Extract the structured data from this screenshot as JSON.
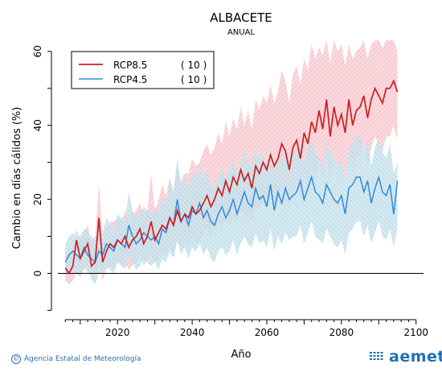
{
  "chart_data": {
    "type": "line",
    "title": "ALBACETE",
    "subtitle": "ANUAL",
    "xlabel": "Año",
    "ylabel": "Cambio en días cálidos (%)",
    "xlim": [
      2004,
      2102
    ],
    "ylim": [
      -11,
      63
    ],
    "xticks": [
      2020,
      2040,
      2060,
      2080,
      2100
    ],
    "yticks": [
      0,
      20,
      40,
      60
    ],
    "grid": false,
    "legend_placement": "top-left",
    "x_start": 2006,
    "series": [
      {
        "name": "RCP8.5",
        "count": "( 10 )",
        "color": "#cc1f1f",
        "band_color": "#f6b8c1",
        "values": [
          1.5,
          0,
          2,
          9,
          4,
          6,
          8,
          2,
          3,
          15,
          3,
          6,
          8,
          7,
          9,
          8,
          10,
          7,
          9,
          10,
          12,
          8,
          10,
          14,
          9,
          11,
          13,
          12,
          15,
          13,
          17,
          14,
          16,
          15,
          18,
          16,
          17,
          19,
          21,
          18,
          20,
          23,
          21,
          25,
          22,
          26,
          24,
          28,
          25,
          27,
          23,
          29,
          27,
          30,
          28,
          32,
          29,
          31,
          35,
          33,
          28,
          34,
          36,
          31,
          38,
          35,
          41,
          38,
          44,
          39,
          47,
          37,
          45,
          40,
          43,
          38,
          47,
          40,
          44,
          45,
          48,
          42,
          47,
          50,
          48,
          46,
          50,
          50,
          52,
          49
        ],
        "upper": [
          6,
          5,
          7,
          12,
          9,
          11,
          13,
          8,
          10,
          24,
          10,
          12,
          14,
          14,
          15,
          14,
          17,
          14,
          16,
          17,
          19,
          16,
          17,
          27,
          17,
          20,
          24,
          21,
          26,
          22,
          29,
          25,
          27,
          27,
          31,
          29,
          30,
          33,
          35,
          32,
          34,
          38,
          35,
          41,
          37,
          42,
          39,
          45,
          40,
          44,
          39,
          47,
          44,
          48,
          46,
          51,
          46,
          49,
          55,
          52,
          46,
          54,
          56,
          51,
          58,
          55,
          62,
          58,
          61,
          59,
          63,
          57,
          63,
          60,
          62,
          56,
          62,
          58,
          60,
          61,
          63,
          58,
          62,
          63,
          63,
          61,
          63,
          63,
          63,
          60
        ],
        "lower": [
          -2,
          -3,
          -2,
          0,
          -1,
          1,
          2,
          -2,
          -2,
          3,
          -2,
          1,
          2,
          1,
          3,
          2,
          3,
          1,
          2,
          3,
          5,
          2,
          4,
          5,
          3,
          4,
          6,
          5,
          7,
          5,
          9,
          6,
          8,
          7,
          10,
          8,
          9,
          11,
          12,
          10,
          12,
          14,
          12,
          15,
          13,
          16,
          14,
          17,
          15,
          16,
          14,
          18,
          17,
          19,
          18,
          21,
          19,
          20,
          23,
          21,
          17,
          22,
          24,
          20,
          26,
          23,
          28,
          25,
          30,
          26,
          32,
          24,
          31,
          27,
          30,
          25,
          33,
          27,
          31,
          32,
          34,
          29,
          34,
          37,
          35,
          33,
          37,
          37,
          40,
          36
        ]
      },
      {
        "name": "RCP4.5",
        "count": "( 10 )",
        "color": "#3388dd",
        "band_color": "#b8dbe8",
        "values": [
          3,
          5,
          6,
          5,
          4,
          7,
          5,
          4,
          3,
          6,
          5,
          8,
          7,
          6,
          9,
          8,
          7,
          13,
          10,
          8,
          9,
          11,
          10,
          9,
          10,
          8,
          12,
          11,
          15,
          13,
          20,
          14,
          16,
          13,
          17,
          16,
          19,
          15,
          17,
          14,
          13,
          16,
          18,
          15,
          17,
          20,
          16,
          19,
          22,
          19,
          18,
          23,
          20,
          21,
          18,
          24,
          17,
          22,
          19,
          23,
          20,
          21,
          22,
          25,
          20,
          23,
          26,
          22,
          21,
          19,
          24,
          22,
          20,
          19,
          21,
          16,
          23,
          24,
          26,
          26,
          22,
          25,
          19,
          23,
          26,
          22,
          21,
          24,
          16,
          25
        ],
        "upper": [
          8,
          10,
          11,
          10,
          10,
          12,
          11,
          10,
          9,
          12,
          11,
          15,
          13,
          12,
          16,
          15,
          14,
          22,
          17,
          15,
          16,
          18,
          17,
          16,
          18,
          16,
          21,
          19,
          25,
          22,
          31,
          24,
          26,
          23,
          27,
          26,
          30,
          25,
          28,
          24,
          23,
          26,
          29,
          25,
          28,
          31,
          26,
          30,
          33,
          30,
          29,
          34,
          31,
          32,
          28,
          35,
          27,
          33,
          30,
          34,
          31,
          32,
          33,
          36,
          30,
          34,
          37,
          33,
          31,
          29,
          35,
          33,
          31,
          29,
          31,
          25,
          34,
          35,
          37,
          37,
          33,
          36,
          29,
          34,
          37,
          33,
          31,
          35,
          27,
          30
        ],
        "lower": [
          -1,
          1,
          1,
          0,
          -1,
          2,
          0,
          -1,
          -3,
          0,
          0,
          2,
          1,
          0,
          3,
          2,
          1,
          5,
          3,
          1,
          2,
          4,
          3,
          2,
          3,
          1,
          4,
          3,
          6,
          4,
          9,
          5,
          7,
          4,
          7,
          6,
          8,
          5,
          7,
          4,
          3,
          6,
          7,
          5,
          6,
          9,
          5,
          8,
          10,
          8,
          7,
          11,
          8,
          9,
          7,
          12,
          6,
          10,
          8,
          11,
          9,
          10,
          10,
          13,
          8,
          11,
          14,
          10,
          9,
          8,
          12,
          10,
          8,
          7,
          9,
          5,
          11,
          12,
          14,
          14,
          10,
          13,
          8,
          11,
          14,
          10,
          9,
          12,
          7,
          12
        ]
      }
    ]
  },
  "footer": {
    "credit": "Agencia Estatal de Meteorología",
    "copyright_symbol": "©",
    "logo_text": "aemet"
  }
}
